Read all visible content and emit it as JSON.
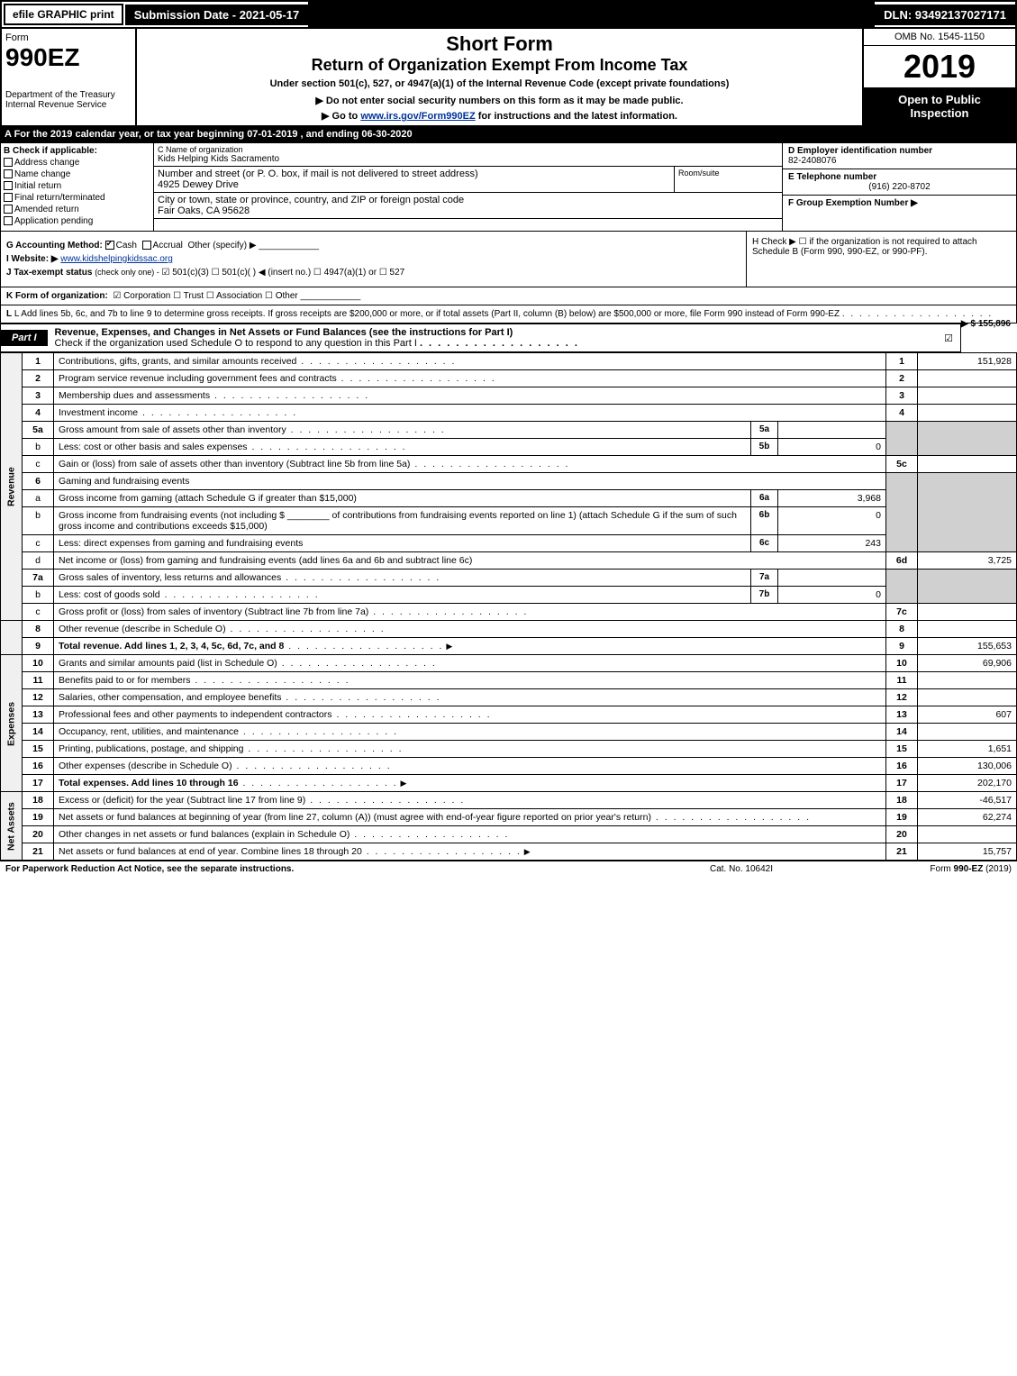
{
  "topbar": {
    "efile": "efile GRAPHIC print",
    "submission": "Submission Date - 2021-05-17",
    "dln": "DLN: 93492137027171"
  },
  "header": {
    "form_word": "Form",
    "form_number": "990EZ",
    "dept": "Department of the Treasury",
    "irs": "Internal Revenue Service",
    "title1": "Short Form",
    "title2": "Return of Organization Exempt From Income Tax",
    "title3": "Under section 501(c), 527, or 4947(a)(1) of the Internal Revenue Code (except private foundations)",
    "title4": "▶ Do not enter social security numbers on this form as it may be made public.",
    "title5_pre": "▶ Go to ",
    "title5_link": "www.irs.gov/Form990EZ",
    "title5_post": " for instructions and the latest information.",
    "omb": "OMB No. 1545-1150",
    "year": "2019",
    "open": "Open to Public Inspection"
  },
  "taxyear": "A For the 2019 calendar year, or tax year beginning 07-01-2019 , and ending 06-30-2020",
  "boxB": {
    "label": "B Check if applicable:",
    "items": [
      "Address change",
      "Name change",
      "Initial return",
      "Final return/terminated",
      "Amended return",
      "Application pending"
    ]
  },
  "boxC": {
    "name_lbl": "C Name of organization",
    "name": "Kids Helping Kids Sacramento",
    "addr_lbl": "Number and street (or P. O. box, if mail is not delivered to street address)",
    "addr": "4925 Dewey Drive",
    "room_lbl": "Room/suite",
    "city_lbl": "City or town, state or province, country, and ZIP or foreign postal code",
    "city": "Fair Oaks, CA  95628"
  },
  "boxD": {
    "lbl": "D Employer identification number",
    "val": "82-2408076"
  },
  "boxE": {
    "lbl": "E Telephone number",
    "val": "(916) 220-8702"
  },
  "boxF": {
    "lbl": "F Group Exemption Number  ▶",
    "val": ""
  },
  "boxG": {
    "lbl": "G Accounting Method:",
    "cash": "Cash",
    "accrual": "Accrual",
    "other": "Other (specify) ▶"
  },
  "boxH": {
    "txt": "H  Check ▶  ☐  if the organization is not required to attach Schedule B (Form 990, 990-EZ, or 990-PF)."
  },
  "boxI": {
    "lbl": "I Website: ▶",
    "val": "www.kidshelpingkidssac.org"
  },
  "boxJ": {
    "lbl": "J Tax-exempt status",
    "note": "(check only one) -",
    "opts": "☑ 501(c)(3)  ☐ 501(c)( )  ◀ (insert no.)  ☐ 4947(a)(1) or  ☐ 527"
  },
  "boxK": {
    "lbl": "K Form of organization:",
    "opts": "☑ Corporation   ☐ Trust   ☐ Association   ☐ Other"
  },
  "boxL": {
    "txt": "L Add lines 5b, 6c, and 7b to line 9 to determine gross receipts. If gross receipts are $200,000 or more, or if total assets (Part II, column (B) below) are $500,000 or more, file Form 990 instead of Form 990-EZ",
    "amt": "▶ $ 155,896"
  },
  "part1": {
    "tag": "Part I",
    "title": "Revenue, Expenses, and Changes in Net Assets or Fund Balances (see the instructions for Part I)",
    "check": "Check if the organization used Schedule O to respond to any question in this Part I",
    "checked": "☑"
  },
  "side_labels": {
    "revenue": "Revenue",
    "expenses": "Expenses",
    "netassets": "Net Assets"
  },
  "lines": {
    "1": {
      "n": "1",
      "d": "Contributions, gifts, grants, and similar amounts received",
      "box": "1",
      "val": "151,928"
    },
    "2": {
      "n": "2",
      "d": "Program service revenue including government fees and contracts",
      "box": "2",
      "val": ""
    },
    "3": {
      "n": "3",
      "d": "Membership dues and assessments",
      "box": "3",
      "val": ""
    },
    "4": {
      "n": "4",
      "d": "Investment income",
      "box": "4",
      "val": ""
    },
    "5a": {
      "n": "5a",
      "d": "Gross amount from sale of assets other than inventory",
      "sbox": "5a",
      "sval": ""
    },
    "5b": {
      "n": "b",
      "d": "Less: cost or other basis and sales expenses",
      "sbox": "5b",
      "sval": "0"
    },
    "5c": {
      "n": "c",
      "d": "Gain or (loss) from sale of assets other than inventory (Subtract line 5b from line 5a)",
      "box": "5c",
      "val": ""
    },
    "6": {
      "n": "6",
      "d": "Gaming and fundraising events"
    },
    "6a": {
      "n": "a",
      "d": "Gross income from gaming (attach Schedule G if greater than $15,000)",
      "sbox": "6a",
      "sval": "3,968"
    },
    "6b": {
      "n": "b",
      "d1": "Gross income from fundraising events (not including $",
      "d2": " of contributions from fundraising events reported on line 1) (attach Schedule G if the sum of such gross income and contributions exceeds $15,000)",
      "sbox": "6b",
      "sval": "0"
    },
    "6c": {
      "n": "c",
      "d": "Less: direct expenses from gaming and fundraising events",
      "sbox": "6c",
      "sval": "243"
    },
    "6d": {
      "n": "d",
      "d": "Net income or (loss) from gaming and fundraising events (add lines 6a and 6b and subtract line 6c)",
      "box": "6d",
      "val": "3,725"
    },
    "7a": {
      "n": "7a",
      "d": "Gross sales of inventory, less returns and allowances",
      "sbox": "7a",
      "sval": ""
    },
    "7b": {
      "n": "b",
      "d": "Less: cost of goods sold",
      "sbox": "7b",
      "sval": "0"
    },
    "7c": {
      "n": "c",
      "d": "Gross profit or (loss) from sales of inventory (Subtract line 7b from line 7a)",
      "box": "7c",
      "val": ""
    },
    "8": {
      "n": "8",
      "d": "Other revenue (describe in Schedule O)",
      "box": "8",
      "val": ""
    },
    "9": {
      "n": "9",
      "d": "Total revenue. Add lines 1, 2, 3, 4, 5c, 6d, 7c, and 8",
      "box": "9",
      "val": "155,653",
      "bold": true,
      "arrow": true
    },
    "10": {
      "n": "10",
      "d": "Grants and similar amounts paid (list in Schedule O)",
      "box": "10",
      "val": "69,906"
    },
    "11": {
      "n": "11",
      "d": "Benefits paid to or for members",
      "box": "11",
      "val": ""
    },
    "12": {
      "n": "12",
      "d": "Salaries, other compensation, and employee benefits",
      "box": "12",
      "val": ""
    },
    "13": {
      "n": "13",
      "d": "Professional fees and other payments to independent contractors",
      "box": "13",
      "val": "607"
    },
    "14": {
      "n": "14",
      "d": "Occupancy, rent, utilities, and maintenance",
      "box": "14",
      "val": ""
    },
    "15": {
      "n": "15",
      "d": "Printing, publications, postage, and shipping",
      "box": "15",
      "val": "1,651"
    },
    "16": {
      "n": "16",
      "d": "Other expenses (describe in Schedule O)",
      "box": "16",
      "val": "130,006"
    },
    "17": {
      "n": "17",
      "d": "Total expenses. Add lines 10 through 16",
      "box": "17",
      "val": "202,170",
      "bold": true,
      "arrow": true
    },
    "18": {
      "n": "18",
      "d": "Excess or (deficit) for the year (Subtract line 17 from line 9)",
      "box": "18",
      "val": "-46,517"
    },
    "19": {
      "n": "19",
      "d": "Net assets or fund balances at beginning of year (from line 27, column (A)) (must agree with end-of-year figure reported on prior year's return)",
      "box": "19",
      "val": "62,274"
    },
    "20": {
      "n": "20",
      "d": "Other changes in net assets or fund balances (explain in Schedule O)",
      "box": "20",
      "val": ""
    },
    "21": {
      "n": "21",
      "d": "Net assets or fund balances at end of year. Combine lines 18 through 20",
      "box": "21",
      "val": "15,757",
      "arrow": true
    }
  },
  "footer": {
    "left": "For Paperwork Reduction Act Notice, see the separate instructions.",
    "mid": "Cat. No. 10642I",
    "right_pre": "Form ",
    "right_bold": "990-EZ",
    "right_post": " (2019)"
  },
  "colors": {
    "black": "#000000",
    "white": "#ffffff",
    "shade": "#d0d0d0",
    "link": "#003399"
  }
}
